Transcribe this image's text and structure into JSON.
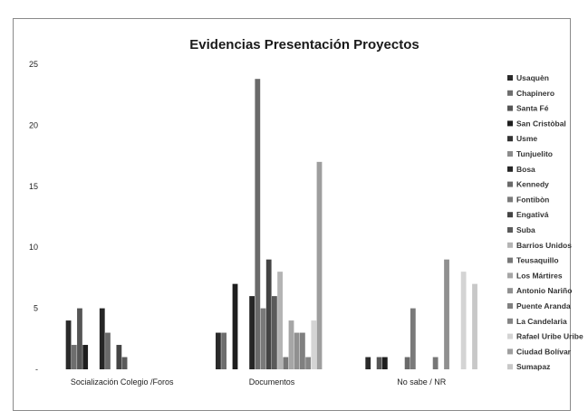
{
  "chart_data": {
    "type": "bar",
    "title": "Evidencias Presentación Proyectos",
    "xlabel": "",
    "ylabel": "",
    "ylim": [
      0,
      25
    ],
    "yticks": [
      0,
      5,
      10,
      15,
      20,
      25
    ],
    "ytick_labels": [
      "-",
      "5",
      "10",
      "15",
      "20",
      "25"
    ],
    "grid": false,
    "legend_position": "right",
    "categories": [
      "Socialización Colegio /Foros",
      "Documentos",
      "No sabe / NR"
    ],
    "series": [
      {
        "name": "Usaquèn",
        "color": "#2a2a2a",
        "values": [
          4,
          3,
          1
        ]
      },
      {
        "name": "Chapinero",
        "color": "#6e6e6e",
        "values": [
          2,
          3,
          0
        ]
      },
      {
        "name": "Santa Fé",
        "color": "#555555",
        "values": [
          5,
          0,
          1
        ]
      },
      {
        "name": "San Cristòbal",
        "color": "#1e1e1e",
        "values": [
          2,
          7,
          1
        ]
      },
      {
        "name": "Usme",
        "color": "#333333",
        "values": [
          0,
          0,
          0
        ]
      },
      {
        "name": "Tunjuelito",
        "color": "#8c8c8c",
        "values": [
          0,
          0,
          0
        ]
      },
      {
        "name": "Bosa",
        "color": "#262626",
        "values": [
          5,
          6,
          0
        ]
      },
      {
        "name": "Kennedy",
        "color": "#6a6a6a",
        "values": [
          3,
          23.8,
          1
        ]
      },
      {
        "name": "Fontibòn",
        "color": "#7a7a7a",
        "values": [
          0,
          5,
          5
        ]
      },
      {
        "name": "Engativá",
        "color": "#444444",
        "values": [
          2,
          9,
          0
        ]
      },
      {
        "name": "Suba",
        "color": "#5a5a5a",
        "values": [
          1,
          6,
          0
        ]
      },
      {
        "name": "Barrios Unidos",
        "color": "#b4b4b4",
        "values": [
          0,
          8,
          0
        ]
      },
      {
        "name": "Teusaquillo",
        "color": "#777777",
        "values": [
          0,
          1,
          1
        ]
      },
      {
        "name": "Los Mártires",
        "color": "#a6a6a6",
        "values": [
          0,
          4,
          0
        ]
      },
      {
        "name": "Antonio Nariño",
        "color": "#909090",
        "values": [
          0,
          3,
          9
        ]
      },
      {
        "name": "Puente Aranda",
        "color": "#808080",
        "values": [
          0,
          3,
          0
        ]
      },
      {
        "name": "La Candelaria",
        "color": "#858585",
        "values": [
          0,
          1,
          0
        ]
      },
      {
        "name": "Rafael Uribe Uribe",
        "color": "#d4d4d4",
        "values": [
          0,
          4,
          8
        ]
      },
      {
        "name": "Ciudad Bolívar",
        "color": "#9e9e9e",
        "values": [
          0,
          17,
          0
        ]
      },
      {
        "name": "Sumapaz",
        "color": "#c8c8c8",
        "values": [
          0,
          0,
          7
        ]
      }
    ]
  }
}
